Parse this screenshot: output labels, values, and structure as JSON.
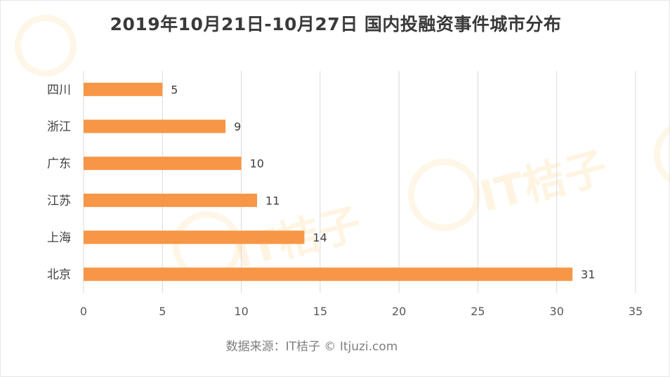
{
  "chart_data": {
    "type": "bar",
    "orientation": "horizontal",
    "title": "2019年10月21日-10月27日 国内投融资事件城市分布",
    "categories": [
      "四川",
      "浙江",
      "广东",
      "江苏",
      "上海",
      "北京"
    ],
    "values": [
      5,
      9,
      10,
      11,
      14,
      31
    ],
    "xlim": [
      0,
      35
    ],
    "xticks": [
      "0",
      "5",
      "10",
      "15",
      "20",
      "25",
      "30",
      "35"
    ],
    "grid": true,
    "bar_color": "#f79646"
  },
  "source": "数据来源：IT桔子 © Itjuzi.com",
  "watermark": "IT桔子"
}
